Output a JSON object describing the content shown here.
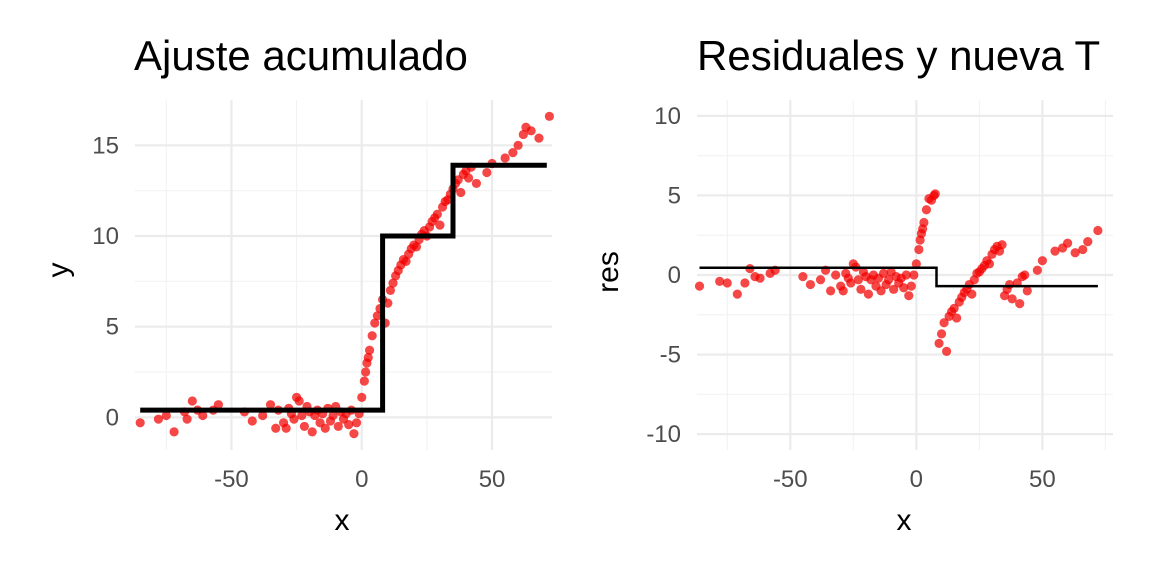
{
  "chart_data": [
    {
      "type": "scatter",
      "title": "Ajuste acumulado",
      "xlabel": "x",
      "ylabel": "y",
      "xlim": [
        -87,
        73
      ],
      "ylim": [
        -1.8,
        17.5
      ],
      "xticks": [
        -50,
        0,
        50
      ],
      "yticks": [
        0,
        5,
        10,
        15
      ],
      "xtick_labels": [
        "-50",
        "0",
        "50"
      ],
      "ytick_labels": [
        "0",
        "5",
        "10",
        "15"
      ],
      "grid": true,
      "point_color": "#f20000",
      "line_color": "#000000",
      "points": [
        [
          -85,
          -0.3
        ],
        [
          -78,
          -0.1
        ],
        [
          -75,
          0.1
        ],
        [
          -72,
          -0.8
        ],
        [
          -68,
          0.3
        ],
        [
          -67,
          -0.1
        ],
        [
          -65,
          0.9
        ],
        [
          -63,
          0.4
        ],
        [
          -61,
          0.1
        ],
        [
          -57,
          0.4
        ],
        [
          -55,
          0.7
        ],
        [
          -45,
          0.3
        ],
        [
          -42,
          -0.2
        ],
        [
          -38,
          0.1
        ],
        [
          -35,
          0.7
        ],
        [
          -33,
          -0.6
        ],
        [
          -32,
          0.4
        ],
        [
          -30,
          -0.3
        ],
        [
          -29,
          -0.6
        ],
        [
          -28,
          0.5
        ],
        [
          -27,
          0.2
        ],
        [
          -26,
          -0.1
        ],
        [
          -25,
          1.1
        ],
        [
          -24,
          0.9
        ],
        [
          -23,
          0.1
        ],
        [
          -22,
          -0.5
        ],
        [
          -21,
          0.6
        ],
        [
          -20,
          0.3
        ],
        [
          -19,
          -0.8
        ],
        [
          -18,
          0.1
        ],
        [
          -17,
          0.4
        ],
        [
          -16,
          -0.3
        ],
        [
          -15,
          0.2
        ],
        [
          -14,
          -0.6
        ],
        [
          -13,
          0.5
        ],
        [
          -12,
          -0.2
        ],
        [
          -11,
          0.1
        ],
        [
          -10,
          0.6
        ],
        [
          -9,
          -0.5
        ],
        [
          -8,
          0.3
        ],
        [
          -7,
          -0.1
        ],
        [
          -6,
          0.2
        ],
        [
          -5,
          -0.4
        ],
        [
          -4,
          0.4
        ],
        [
          -3,
          -0.9
        ],
        [
          -2,
          -0.3
        ],
        [
          -1,
          0.2
        ],
        [
          0,
          1.1
        ],
        [
          1,
          2.0
        ],
        [
          1.5,
          2.5
        ],
        [
          2,
          3.0
        ],
        [
          2.5,
          3.3
        ],
        [
          3,
          3.7
        ],
        [
          4,
          4.5
        ],
        [
          5,
          5.2
        ],
        [
          6,
          5.6
        ],
        [
          7,
          6.0
        ],
        [
          8,
          6.5
        ],
        [
          9,
          5.2
        ],
        [
          10,
          6.3
        ],
        [
          11,
          7.0
        ],
        [
          12,
          7.4
        ],
        [
          13,
          7.8
        ],
        [
          14,
          8.1
        ],
        [
          15,
          8.4
        ],
        [
          16,
          8.7
        ],
        [
          17,
          8.6
        ],
        [
          18,
          9.0
        ],
        [
          19,
          9.3
        ],
        [
          20,
          9.5
        ],
        [
          21,
          9.4
        ],
        [
          22,
          9.8
        ],
        [
          23,
          10.1
        ],
        [
          24,
          10.3
        ],
        [
          25,
          10.0
        ],
        [
          26,
          10.5
        ],
        [
          27,
          10.8
        ],
        [
          28,
          11.0
        ],
        [
          29,
          11.2
        ],
        [
          30,
          10.6
        ],
        [
          31,
          11.6
        ],
        [
          32,
          11.9
        ],
        [
          33,
          12.0
        ],
        [
          34,
          12.3
        ],
        [
          35,
          12.6
        ],
        [
          36,
          12.9
        ],
        [
          37,
          13.1
        ],
        [
          38,
          12.4
        ],
        [
          39,
          13.4
        ],
        [
          40,
          13.6
        ],
        [
          41,
          13.2
        ],
        [
          42,
          13.8
        ],
        [
          44,
          12.9
        ],
        [
          48,
          13.5
        ],
        [
          50,
          14.0
        ],
        [
          55,
          14.3
        ],
        [
          58,
          14.6
        ],
        [
          60,
          15.0
        ],
        [
          62,
          15.6
        ],
        [
          63,
          16.0
        ],
        [
          65,
          15.8
        ],
        [
          68,
          15.4
        ],
        [
          72,
          16.6
        ]
      ],
      "step_line": [
        [
          -85,
          0.4
        ],
        [
          8,
          0.4
        ],
        [
          8,
          10.0
        ],
        [
          35,
          10.0
        ],
        [
          35,
          13.9
        ],
        [
          71,
          13.9
        ]
      ]
    },
    {
      "type": "scatter",
      "title": "Residuales y nueva T",
      "xlabel": "x",
      "ylabel": "res",
      "xlim": [
        -87,
        78
      ],
      "ylim": [
        -11,
        11
      ],
      "xticks": [
        -50,
        0,
        50
      ],
      "yticks": [
        -10,
        -5,
        0,
        5,
        10
      ],
      "xtick_labels": [
        "-50",
        "0",
        "50"
      ],
      "ytick_labels": [
        "-10",
        "-5",
        "0",
        "5",
        "10"
      ],
      "grid": true,
      "point_color": "#f20000",
      "line_color": "#000000",
      "points": [
        [
          -86,
          -0.7
        ],
        [
          -78,
          -0.4
        ],
        [
          -75,
          -0.5
        ],
        [
          -71,
          -1.2
        ],
        [
          -68,
          -0.5
        ],
        [
          -66,
          0.4
        ],
        [
          -64,
          -0.1
        ],
        [
          -62,
          -0.2
        ],
        [
          -58,
          0.1
        ],
        [
          -56,
          0.3
        ],
        [
          -45,
          -0.1
        ],
        [
          -42,
          -0.6
        ],
        [
          -38,
          -0.3
        ],
        [
          -36,
          0.3
        ],
        [
          -34,
          -1.0
        ],
        [
          -32,
          0.0
        ],
        [
          -30,
          -0.7
        ],
        [
          -29,
          -1.0
        ],
        [
          -28,
          0.1
        ],
        [
          -27,
          -0.2
        ],
        [
          -26,
          -0.5
        ],
        [
          -25,
          0.7
        ],
        [
          -24,
          0.5
        ],
        [
          -23,
          -0.3
        ],
        [
          -22,
          -0.9
        ],
        [
          -21,
          0.2
        ],
        [
          -20,
          -0.1
        ],
        [
          -19,
          -1.2
        ],
        [
          -18,
          -0.3
        ],
        [
          -17,
          0.0
        ],
        [
          -16,
          -0.7
        ],
        [
          -15,
          -0.2
        ],
        [
          -14,
          -1.0
        ],
        [
          -13,
          0.1
        ],
        [
          -12,
          -0.6
        ],
        [
          -11,
          -0.3
        ],
        [
          -10,
          0.2
        ],
        [
          -9,
          -0.9
        ],
        [
          -8,
          -0.1
        ],
        [
          -7,
          -0.5
        ],
        [
          -6,
          -0.2
        ],
        [
          -5,
          -0.8
        ],
        [
          -4,
          0.0
        ],
        [
          -3,
          -1.3
        ],
        [
          -2,
          -0.7
        ],
        [
          -1,
          0.0
        ],
        [
          0,
          0.7
        ],
        [
          1,
          1.6
        ],
        [
          1.5,
          2.2
        ],
        [
          2,
          2.6
        ],
        [
          2.5,
          2.9
        ],
        [
          3,
          3.3
        ],
        [
          4,
          4.1
        ],
        [
          5,
          4.8
        ],
        [
          6,
          4.7
        ],
        [
          7,
          5.0
        ],
        [
          7.5,
          5.1
        ],
        [
          9,
          -4.3
        ],
        [
          10,
          -3.7
        ],
        [
          11,
          -3.0
        ],
        [
          12,
          -4.8
        ],
        [
          13,
          -2.6
        ],
        [
          14,
          -2.3
        ],
        [
          15,
          -2.1
        ],
        [
          16,
          -2.7
        ],
        [
          17,
          -1.7
        ],
        [
          18,
          -1.4
        ],
        [
          19,
          -1.1
        ],
        [
          20,
          -0.9
        ],
        [
          21,
          -0.6
        ],
        [
          22,
          -1.2
        ],
        [
          23,
          -0.3
        ],
        [
          24,
          0.1
        ],
        [
          25,
          0.2
        ],
        [
          26,
          0.4
        ],
        [
          27,
          0.6
        ],
        [
          28,
          0.9
        ],
        [
          29,
          0.7
        ],
        [
          30,
          1.3
        ],
        [
          31,
          1.6
        ],
        [
          32,
          1.8
        ],
        [
          33,
          1.5
        ],
        [
          34,
          1.9
        ],
        [
          35,
          -1.3
        ],
        [
          36,
          -0.9
        ],
        [
          37,
          -0.6
        ],
        [
          38,
          -1.5
        ],
        [
          40,
          -0.5
        ],
        [
          41,
          -1.8
        ],
        [
          42,
          -0.1
        ],
        [
          43,
          0.0
        ],
        [
          44,
          -1.0
        ],
        [
          48,
          0.3
        ],
        [
          50,
          0.9
        ],
        [
          55,
          1.5
        ],
        [
          58,
          1.7
        ],
        [
          60,
          2.0
        ],
        [
          63,
          1.4
        ],
        [
          66,
          1.6
        ],
        [
          68,
          2.1
        ],
        [
          72,
          2.8
        ]
      ],
      "step_line": [
        [
          -86,
          0.45
        ],
        [
          8,
          0.45
        ],
        [
          8,
          -0.7
        ],
        [
          72,
          -0.7
        ]
      ]
    }
  ]
}
